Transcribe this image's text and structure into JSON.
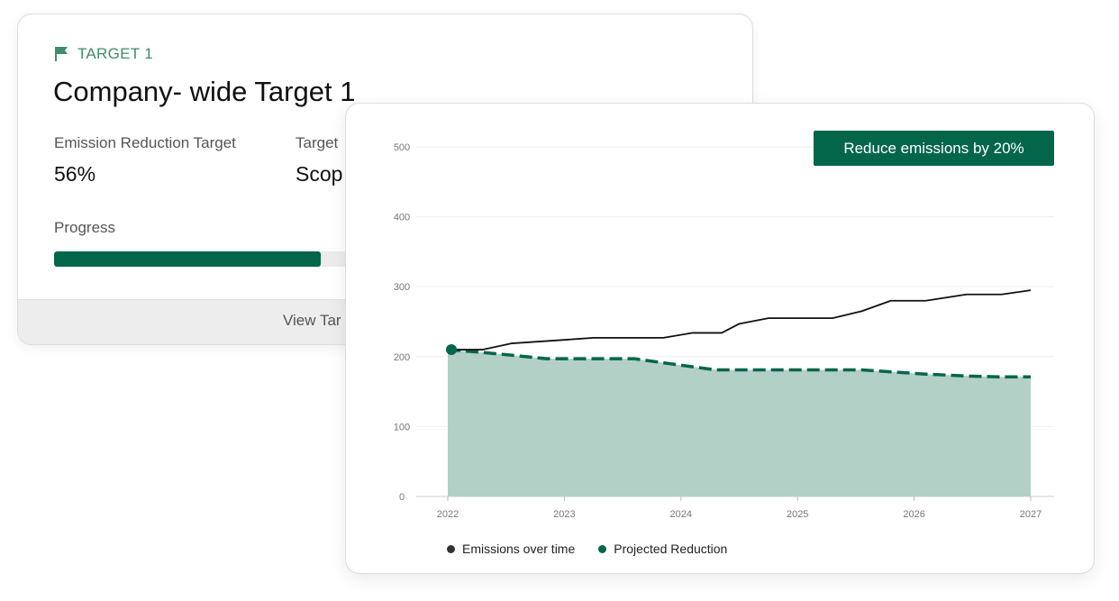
{
  "target_card": {
    "tag": "TARGET 1",
    "title": "Company- wide Target 1",
    "metrics": [
      {
        "label": "Emission Reduction Target",
        "value": "56%"
      },
      {
        "label": "Target",
        "value": "Scop"
      }
    ],
    "progress_label": "Progress",
    "progress": 0.4,
    "footer_link": "View Tar"
  },
  "colors": {
    "accent": "#03664a",
    "tag": "#3f8d6a",
    "area": "#b3d0c6",
    "emissions_line": "#111111"
  },
  "chart_data": {
    "type": "line",
    "title": "",
    "badge": "Reduce emissions by 20%",
    "xlabel": "",
    "ylabel": "",
    "xlim": [
      2022,
      2027
    ],
    "ylim": [
      0,
      500
    ],
    "x_ticks": [
      "2022",
      "2023",
      "2024",
      "2025",
      "2026",
      "2027"
    ],
    "y_ticks": [
      "0",
      "100",
      "200",
      "300",
      "400",
      "500"
    ],
    "grid": true,
    "legend_position": "bottom-left",
    "series": [
      {
        "name": "Emissions over time",
        "color": "#111111",
        "x": [
          2022,
          2022.3,
          2022.55,
          2023,
          2023.25,
          2023.5,
          2023.85,
          2024.1,
          2024.35,
          2024.5,
          2024.75,
          2025,
          2025.3,
          2025.55,
          2025.8,
          2026.1,
          2026.45,
          2026.75,
          2027
        ],
        "values": [
          210,
          210,
          219,
          224,
          227,
          227,
          227,
          234,
          234,
          247,
          255,
          255,
          255,
          265,
          280,
          280,
          289,
          289,
          295
        ]
      },
      {
        "name": "Projected Reduction",
        "color": "#03664a",
        "x": [
          2022,
          2022.3,
          2022.55,
          2022.85,
          2023.25,
          2023.6,
          2023.9,
          2024.3,
          2024.7,
          2025.05,
          2025.55,
          2026.1,
          2026.5,
          2026.75,
          2027
        ],
        "values": [
          210,
          206,
          202,
          197,
          197,
          197,
          190,
          181,
          181,
          181,
          181,
          175,
          172,
          171,
          171
        ]
      }
    ]
  }
}
